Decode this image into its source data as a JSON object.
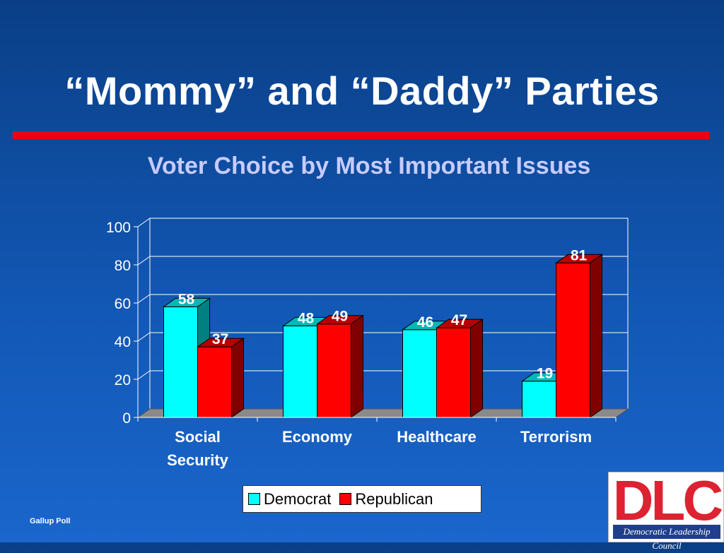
{
  "slide": {
    "title": "“Mommy” and “Daddy” Parties",
    "subtitle": "Voter Choice by Most Important Issues",
    "source": "Gallup Poll"
  },
  "logo": {
    "letters": "DLC",
    "caption": "Democratic Leadership Council"
  },
  "chart_data": {
    "type": "bar",
    "title": "Voter Choice by Most Important Issues",
    "categories": [
      "Social Security",
      "Economy",
      "Healthcare",
      "Terrorism"
    ],
    "category_lines": [
      [
        "Social",
        "Security"
      ],
      [
        "Economy"
      ],
      [
        "Healthcare"
      ],
      [
        "Terrorism"
      ]
    ],
    "series": [
      {
        "name": "Democrat",
        "values": [
          58,
          48,
          46,
          19
        ],
        "color": "#00ffff"
      },
      {
        "name": "Republican",
        "values": [
          37,
          49,
          47,
          81
        ],
        "color": "#ff0000"
      }
    ],
    "ylim": [
      0,
      100
    ],
    "yticks": [
      0,
      20,
      40,
      60,
      80,
      100
    ],
    "grid": true,
    "legend_position": "bottom"
  }
}
